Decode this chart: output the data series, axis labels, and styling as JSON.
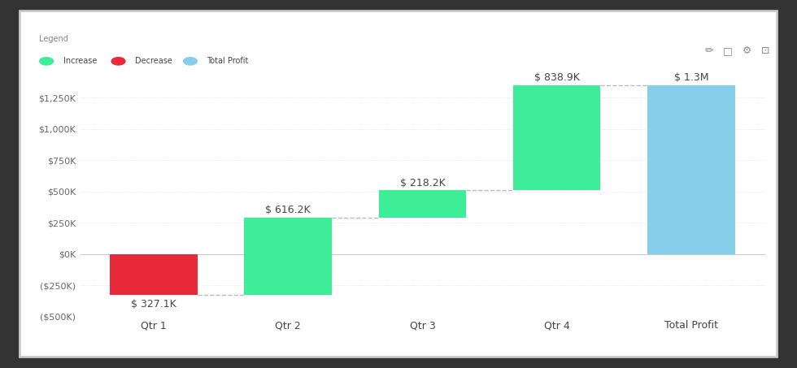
{
  "categories": [
    "Qtr 1",
    "Qtr 2",
    "Qtr 3",
    "Qtr 4",
    "Total Profit"
  ],
  "values": [
    -327.1,
    616.2,
    218.2,
    838.9,
    1346.2
  ],
  "types": [
    "decrease",
    "increase",
    "increase",
    "increase",
    "total"
  ],
  "labels": [
    "$ 327.1K",
    "$ 616.2K",
    "$ 218.2K",
    "$ 838.9K",
    "$ 1.3M"
  ],
  "color_increase": "#3DED97",
  "color_decrease": "#E8293A",
  "color_total": "#87CEEB",
  "bg_color": "#FFFFFF",
  "outer_bg": "#333333",
  "card_bg": "#FFFFFF",
  "ylim_min": -500,
  "ylim_max": 1500,
  "yticks": [
    -500,
    -250,
    0,
    250,
    500,
    750,
    1000,
    1250
  ],
  "ytick_labels": [
    "($500K)",
    "($250K)",
    "$0K",
    "$250K",
    "$500K",
    "$750K",
    "$1,000K",
    "$1,250K"
  ],
  "legend_increase": "Increase",
  "legend_decrease": "Decrease",
  "legend_total": "Total Profit",
  "bar_width": 0.65,
  "connector_color": "#BBBBBB",
  "label_fontsize": 9,
  "tick_fontsize": 8,
  "legend_fontsize": 8,
  "label_color": "#444444",
  "xtick_fontsize": 9
}
